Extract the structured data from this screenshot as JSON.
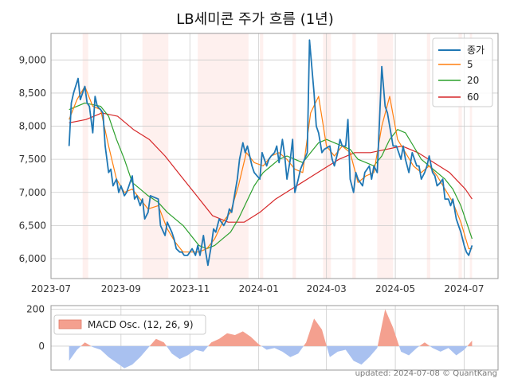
{
  "chart_data": {
    "type": "line",
    "title": "LB세미콘 주가 흐름 (1년)",
    "footer": "updated: 2024-07-08 © QuantKang",
    "colors": {
      "close": "#1f77b4",
      "ma5": "#ff7f0e",
      "ma20": "#2ca02c",
      "ma60": "#d62728",
      "band": "#fde6e2",
      "osc_pos": "#f4a08f",
      "osc_neg": "#a9c1f0",
      "grid": "#cccccc",
      "axis": "#999999"
    },
    "x_ticks": [
      "2023-07",
      "2023-09",
      "2023-11",
      "2024-01",
      "2024-03",
      "2024-05",
      "2024-07"
    ],
    "y_ticks": [
      6000,
      6500,
      7000,
      7500,
      8000,
      8500,
      9000
    ],
    "y_tick_labels": [
      "6,000",
      "6,500",
      "7,000",
      "7,500",
      "8,000",
      "8,500",
      "9,000"
    ],
    "ylim": [
      5700,
      9400
    ],
    "x_range": [
      "2023-07-01",
      "2024-07-31"
    ],
    "legend": {
      "placement": "top-right",
      "entries": [
        "종가",
        "5",
        "20",
        "60"
      ]
    },
    "close": [
      [
        "2023-07-17",
        7700
      ],
      [
        "2023-07-19",
        8350
      ],
      [
        "2023-07-21",
        8500
      ],
      [
        "2023-07-25",
        8720
      ],
      [
        "2023-07-27",
        8400
      ],
      [
        "2023-07-31",
        8600
      ],
      [
        "2023-08-02",
        8350
      ],
      [
        "2023-08-04",
        8300
      ],
      [
        "2023-08-07",
        7900
      ],
      [
        "2023-08-09",
        8450
      ],
      [
        "2023-08-11",
        8300
      ],
      [
        "2023-08-14",
        8250
      ],
      [
        "2023-08-16",
        8200
      ],
      [
        "2023-08-18",
        7700
      ],
      [
        "2023-08-21",
        7300
      ],
      [
        "2023-08-23",
        7350
      ],
      [
        "2023-08-25",
        7100
      ],
      [
        "2023-08-28",
        7200
      ],
      [
        "2023-08-30",
        7000
      ],
      [
        "2023-09-01",
        7100
      ],
      [
        "2023-09-04",
        6950
      ],
      [
        "2023-09-06",
        7000
      ],
      [
        "2023-09-08",
        7100
      ],
      [
        "2023-09-11",
        7250
      ],
      [
        "2023-09-13",
        6900
      ],
      [
        "2023-09-15",
        6950
      ],
      [
        "2023-09-18",
        6800
      ],
      [
        "2023-09-20",
        6900
      ],
      [
        "2023-09-22",
        6600
      ],
      [
        "2023-09-25",
        6700
      ],
      [
        "2023-09-27",
        6950
      ],
      [
        "2023-10-04",
        6900
      ],
      [
        "2023-10-06",
        6500
      ],
      [
        "2023-10-10",
        6350
      ],
      [
        "2023-10-12",
        6550
      ],
      [
        "2023-10-16",
        6400
      ],
      [
        "2023-10-18",
        6300
      ],
      [
        "2023-10-20",
        6150
      ],
      [
        "2023-10-23",
        6100
      ],
      [
        "2023-10-25",
        6100
      ],
      [
        "2023-10-27",
        6050
      ],
      [
        "2023-10-30",
        6050
      ],
      [
        "2023-11-01",
        6100
      ],
      [
        "2023-11-03",
        6150
      ],
      [
        "2023-11-06",
        6050
      ],
      [
        "2023-11-08",
        6200
      ],
      [
        "2023-11-10",
        6050
      ],
      [
        "2023-11-13",
        6350
      ],
      [
        "2023-11-15",
        6100
      ],
      [
        "2023-11-17",
        5900
      ],
      [
        "2023-11-20",
        6200
      ],
      [
        "2023-11-22",
        6450
      ],
      [
        "2023-11-24",
        6400
      ],
      [
        "2023-11-27",
        6600
      ],
      [
        "2023-11-29",
        6550
      ],
      [
        "2023-12-01",
        6500
      ],
      [
        "2023-12-04",
        6600
      ],
      [
        "2023-12-06",
        6750
      ],
      [
        "2023-12-08",
        6700
      ],
      [
        "2023-12-11",
        7000
      ],
      [
        "2023-12-13",
        7200
      ],
      [
        "2023-12-15",
        7500
      ],
      [
        "2023-12-18",
        7750
      ],
      [
        "2023-12-20",
        7600
      ],
      [
        "2023-12-22",
        7700
      ],
      [
        "2023-12-26",
        7400
      ],
      [
        "2023-12-28",
        7300
      ],
      [
        "2024-01-02",
        7200
      ],
      [
        "2024-01-04",
        7600
      ],
      [
        "2024-01-08",
        7400
      ],
      [
        "2024-01-10",
        7500
      ],
      [
        "2024-01-12",
        7550
      ],
      [
        "2024-01-15",
        7600
      ],
      [
        "2024-01-17",
        7700
      ],
      [
        "2024-01-19",
        7450
      ],
      [
        "2024-01-22",
        7800
      ],
      [
        "2024-01-24",
        7550
      ],
      [
        "2024-01-26",
        7200
      ],
      [
        "2024-01-29",
        7500
      ],
      [
        "2024-01-31",
        7800
      ],
      [
        "2024-02-02",
        7000
      ],
      [
        "2024-02-05",
        7200
      ],
      [
        "2024-02-07",
        7350
      ],
      [
        "2024-02-13",
        7600
      ],
      [
        "2024-02-15",
        9300
      ],
      [
        "2024-02-19",
        8500
      ],
      [
        "2024-02-21",
        8000
      ],
      [
        "2024-02-23",
        7900
      ],
      [
        "2024-02-26",
        7600
      ],
      [
        "2024-02-28",
        7650
      ],
      [
        "2024-03-04",
        7700
      ],
      [
        "2024-03-06",
        7500
      ],
      [
        "2024-03-08",
        7400
      ],
      [
        "2024-03-11",
        7600
      ],
      [
        "2024-03-13",
        7800
      ],
      [
        "2024-03-15",
        7700
      ],
      [
        "2024-03-18",
        7700
      ],
      [
        "2024-03-20",
        8100
      ],
      [
        "2024-03-22",
        7200
      ],
      [
        "2024-03-25",
        7000
      ],
      [
        "2024-03-27",
        7300
      ],
      [
        "2024-03-29",
        7200
      ],
      [
        "2024-04-02",
        7100
      ],
      [
        "2024-04-04",
        7300
      ],
      [
        "2024-04-08",
        7400
      ],
      [
        "2024-04-10",
        7200
      ],
      [
        "2024-04-12",
        7400
      ],
      [
        "2024-04-15",
        7300
      ],
      [
        "2024-04-17",
        8100
      ],
      [
        "2024-04-19",
        8900
      ],
      [
        "2024-04-22",
        8300
      ],
      [
        "2024-04-24",
        8200
      ],
      [
        "2024-04-26",
        8000
      ],
      [
        "2024-04-29",
        7700
      ],
      [
        "2024-05-02",
        7700
      ],
      [
        "2024-05-06",
        7500
      ],
      [
        "2024-05-08",
        7700
      ],
      [
        "2024-05-10",
        7500
      ],
      [
        "2024-05-13",
        7300
      ],
      [
        "2024-05-16",
        7600
      ],
      [
        "2024-05-20",
        7400
      ],
      [
        "2024-05-22",
        7400
      ],
      [
        "2024-05-24",
        7200
      ],
      [
        "2024-05-27",
        7300
      ],
      [
        "2024-05-29",
        7400
      ],
      [
        "2024-05-31",
        7550
      ],
      [
        "2024-06-03",
        7300
      ],
      [
        "2024-06-05",
        7250
      ],
      [
        "2024-06-07",
        7100
      ],
      [
        "2024-06-10",
        7150
      ],
      [
        "2024-06-12",
        7200
      ],
      [
        "2024-06-14",
        6900
      ],
      [
        "2024-06-17",
        6900
      ],
      [
        "2024-06-19",
        6800
      ],
      [
        "2024-06-21",
        6900
      ],
      [
        "2024-06-24",
        6600
      ],
      [
        "2024-06-26",
        6500
      ],
      [
        "2024-06-28",
        6400
      ],
      [
        "2024-07-01",
        6200
      ],
      [
        "2024-07-03",
        6100
      ],
      [
        "2024-07-05",
        6050
      ],
      [
        "2024-07-08",
        6200
      ]
    ],
    "ma5": [
      [
        "2023-07-17",
        8100
      ],
      [
        "2023-07-24",
        8400
      ],
      [
        "2023-07-31",
        8600
      ],
      [
        "2023-08-07",
        8300
      ],
      [
        "2023-08-14",
        8250
      ],
      [
        "2023-08-21",
        7700
      ],
      [
        "2023-08-28",
        7200
      ],
      [
        "2023-09-04",
        7000
      ],
      [
        "2023-09-11",
        7050
      ],
      [
        "2023-09-18",
        6900
      ],
      [
        "2023-09-25",
        6750
      ],
      [
        "2023-10-04",
        6800
      ],
      [
        "2023-10-12",
        6450
      ],
      [
        "2023-10-19",
        6250
      ],
      [
        "2023-10-26",
        6100
      ],
      [
        "2023-11-02",
        6100
      ],
      [
        "2023-11-09",
        6100
      ],
      [
        "2023-11-16",
        6150
      ],
      [
        "2023-11-23",
        6300
      ],
      [
        "2023-11-30",
        6550
      ],
      [
        "2023-12-07",
        6700
      ],
      [
        "2023-12-14",
        7100
      ],
      [
        "2023-12-21",
        7600
      ],
      [
        "2023-12-28",
        7450
      ],
      [
        "2024-01-05",
        7400
      ],
      [
        "2024-01-12",
        7550
      ],
      [
        "2024-01-19",
        7600
      ],
      [
        "2024-01-26",
        7500
      ],
      [
        "2024-02-02",
        7350
      ],
      [
        "2024-02-09",
        7300
      ],
      [
        "2024-02-16",
        8200
      ],
      [
        "2024-02-23",
        8450
      ],
      [
        "2024-03-01",
        7700
      ],
      [
        "2024-03-08",
        7550
      ],
      [
        "2024-03-15",
        7700
      ],
      [
        "2024-03-22",
        7600
      ],
      [
        "2024-03-29",
        7150
      ],
      [
        "2024-04-05",
        7250
      ],
      [
        "2024-04-12",
        7300
      ],
      [
        "2024-04-19",
        8000
      ],
      [
        "2024-04-26",
        8450
      ],
      [
        "2024-05-03",
        7800
      ],
      [
        "2024-05-10",
        7600
      ],
      [
        "2024-05-17",
        7400
      ],
      [
        "2024-05-24",
        7300
      ],
      [
        "2024-05-31",
        7400
      ],
      [
        "2024-06-07",
        7250
      ],
      [
        "2024-06-14",
        7050
      ],
      [
        "2024-06-21",
        6850
      ],
      [
        "2024-06-28",
        6550
      ],
      [
        "2024-07-05",
        6150
      ],
      [
        "2024-07-08",
        6150
      ]
    ],
    "ma20": [
      [
        "2023-07-17",
        8250
      ],
      [
        "2023-07-31",
        8350
      ],
      [
        "2023-08-14",
        8300
      ],
      [
        "2023-08-21",
        8150
      ],
      [
        "2023-08-28",
        7800
      ],
      [
        "2023-09-04",
        7500
      ],
      [
        "2023-09-11",
        7150
      ],
      [
        "2023-09-18",
        7050
      ],
      [
        "2023-09-25",
        6950
      ],
      [
        "2023-10-04",
        6850
      ],
      [
        "2023-10-12",
        6700
      ],
      [
        "2023-10-19",
        6600
      ],
      [
        "2023-10-26",
        6500
      ],
      [
        "2023-11-02",
        6350
      ],
      [
        "2023-11-09",
        6200
      ],
      [
        "2023-11-16",
        6150
      ],
      [
        "2023-11-23",
        6200
      ],
      [
        "2023-11-30",
        6300
      ],
      [
        "2023-12-07",
        6400
      ],
      [
        "2023-12-14",
        6600
      ],
      [
        "2023-12-21",
        6850
      ],
      [
        "2023-12-28",
        7100
      ],
      [
        "2024-01-05",
        7300
      ],
      [
        "2024-01-12",
        7400
      ],
      [
        "2024-01-19",
        7500
      ],
      [
        "2024-01-26",
        7550
      ],
      [
        "2024-02-02",
        7500
      ],
      [
        "2024-02-09",
        7450
      ],
      [
        "2024-02-16",
        7600
      ],
      [
        "2024-02-23",
        7750
      ],
      [
        "2024-03-01",
        7800
      ],
      [
        "2024-03-08",
        7750
      ],
      [
        "2024-03-15",
        7700
      ],
      [
        "2024-03-22",
        7650
      ],
      [
        "2024-03-29",
        7500
      ],
      [
        "2024-04-05",
        7450
      ],
      [
        "2024-04-12",
        7400
      ],
      [
        "2024-04-19",
        7550
      ],
      [
        "2024-04-26",
        7800
      ],
      [
        "2024-05-03",
        7950
      ],
      [
        "2024-05-10",
        7900
      ],
      [
        "2024-05-17",
        7700
      ],
      [
        "2024-05-24",
        7500
      ],
      [
        "2024-05-31",
        7400
      ],
      [
        "2024-06-07",
        7300
      ],
      [
        "2024-06-14",
        7200
      ],
      [
        "2024-06-21",
        7050
      ],
      [
        "2024-06-28",
        6800
      ],
      [
        "2024-07-05",
        6450
      ],
      [
        "2024-07-08",
        6300
      ]
    ],
    "ma60": [
      [
        "2023-07-17",
        8050
      ],
      [
        "2023-08-01",
        8100
      ],
      [
        "2023-08-15",
        8200
      ],
      [
        "2023-08-29",
        8150
      ],
      [
        "2023-09-12",
        7950
      ],
      [
        "2023-09-26",
        7800
      ],
      [
        "2023-10-10",
        7550
      ],
      [
        "2023-10-24",
        7250
      ],
      [
        "2023-11-07",
        6950
      ],
      [
        "2023-11-21",
        6650
      ],
      [
        "2023-12-05",
        6550
      ],
      [
        "2023-12-19",
        6550
      ],
      [
        "2024-01-02",
        6700
      ],
      [
        "2024-01-16",
        6900
      ],
      [
        "2024-01-30",
        7050
      ],
      [
        "2024-02-13",
        7200
      ],
      [
        "2024-02-27",
        7350
      ],
      [
        "2024-03-12",
        7500
      ],
      [
        "2024-03-26",
        7600
      ],
      [
        "2024-04-09",
        7600
      ],
      [
        "2024-04-23",
        7650
      ],
      [
        "2024-05-07",
        7700
      ],
      [
        "2024-05-21",
        7600
      ],
      [
        "2024-06-04",
        7450
      ],
      [
        "2024-06-18",
        7300
      ],
      [
        "2024-07-02",
        7050
      ],
      [
        "2024-07-08",
        6900
      ]
    ],
    "bands": [
      [
        "2023-07-29",
        "2023-08-03"
      ],
      [
        "2023-09-20",
        "2023-10-13"
      ],
      [
        "2023-11-08",
        "2023-12-23"
      ],
      [
        "2024-01-02",
        "2024-01-05"
      ],
      [
        "2024-01-31",
        "2024-02-03"
      ],
      [
        "2024-02-27",
        "2024-03-05"
      ],
      [
        "2024-03-24",
        "2024-03-27"
      ],
      [
        "2024-04-15",
        "2024-04-29"
      ],
      [
        "2024-05-29",
        "2024-06-01"
      ],
      [
        "2024-06-26",
        "2024-06-29"
      ],
      [
        "2024-07-06",
        "2024-07-08"
      ]
    ],
    "macd": {
      "legend": "MACD Osc. (12, 26, 9)",
      "y_ticks": [
        0,
        200
      ],
      "ylim": [
        -130,
        220
      ],
      "values": [
        [
          "2023-07-17",
          -80
        ],
        [
          "2023-07-24",
          -20
        ],
        [
          "2023-07-31",
          20
        ],
        [
          "2023-08-07",
          -5
        ],
        [
          "2023-08-14",
          -20
        ],
        [
          "2023-08-21",
          -60
        ],
        [
          "2023-08-28",
          -90
        ],
        [
          "2023-09-04",
          -120
        ],
        [
          "2023-09-11",
          -100
        ],
        [
          "2023-09-18",
          -60
        ],
        [
          "2023-09-25",
          -10
        ],
        [
          "2023-10-02",
          40
        ],
        [
          "2023-10-09",
          20
        ],
        [
          "2023-10-16",
          -40
        ],
        [
          "2023-10-23",
          -70
        ],
        [
          "2023-10-30",
          -50
        ],
        [
          "2023-11-06",
          -20
        ],
        [
          "2023-11-13",
          -30
        ],
        [
          "2023-11-20",
          20
        ],
        [
          "2023-11-27",
          40
        ],
        [
          "2023-12-04",
          70
        ],
        [
          "2023-12-11",
          60
        ],
        [
          "2023-12-18",
          80
        ],
        [
          "2023-12-25",
          50
        ],
        [
          "2024-01-01",
          10
        ],
        [
          "2024-01-08",
          -20
        ],
        [
          "2024-01-15",
          -10
        ],
        [
          "2024-01-22",
          -30
        ],
        [
          "2024-01-29",
          -60
        ],
        [
          "2024-02-05",
          -40
        ],
        [
          "2024-02-12",
          20
        ],
        [
          "2024-02-19",
          150
        ],
        [
          "2024-02-26",
          90
        ],
        [
          "2024-03-04",
          -60
        ],
        [
          "2024-03-11",
          -30
        ],
        [
          "2024-03-18",
          -20
        ],
        [
          "2024-03-25",
          -80
        ],
        [
          "2024-04-01",
          -100
        ],
        [
          "2024-04-08",
          -60
        ],
        [
          "2024-04-15",
          -10
        ],
        [
          "2024-04-22",
          200
        ],
        [
          "2024-04-29",
          100
        ],
        [
          "2024-05-06",
          -30
        ],
        [
          "2024-05-13",
          -50
        ],
        [
          "2024-05-20",
          -10
        ],
        [
          "2024-05-27",
          20
        ],
        [
          "2024-06-03",
          -10
        ],
        [
          "2024-06-10",
          -30
        ],
        [
          "2024-06-17",
          -10
        ],
        [
          "2024-06-24",
          -50
        ],
        [
          "2024-07-01",
          -20
        ],
        [
          "2024-07-08",
          30
        ]
      ]
    }
  }
}
